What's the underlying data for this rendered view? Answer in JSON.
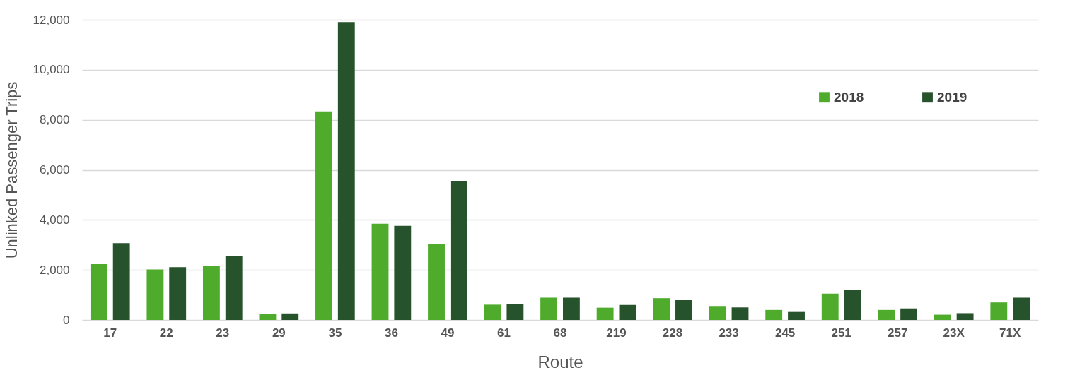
{
  "chart_data": {
    "type": "bar",
    "xlabel": "Route",
    "ylabel": "Unlinked Passenger Trips",
    "categories": [
      "17",
      "22",
      "23",
      "29",
      "35",
      "36",
      "49",
      "61",
      "68",
      "219",
      "228",
      "233",
      "245",
      "251",
      "257",
      "23X",
      "71X"
    ],
    "series": [
      {
        "name": "2018",
        "color": "#4eab2b",
        "values": [
          2230,
          2020,
          2150,
          230,
          8340,
          3850,
          3050,
          610,
          890,
          490,
          870,
          530,
          400,
          1050,
          400,
          210,
          700
        ]
      },
      {
        "name": "2019",
        "color": "#26532b",
        "values": [
          3070,
          2110,
          2550,
          260,
          11910,
          3760,
          5540,
          630,
          890,
          600,
          790,
          500,
          320,
          1190,
          460,
          270,
          890
        ]
      }
    ],
    "ylim": [
      0,
      12000
    ],
    "yticks": [
      0,
      {
        "value": 2000,
        "label": "2,000"
      },
      {
        "value": 4000,
        "label": "4,000"
      },
      {
        "value": 6000,
        "label": "6,000"
      },
      {
        "value": 8000,
        "label": "8,000"
      },
      {
        "value": 10000,
        "label": "10,000"
      },
      {
        "value": 12000,
        "label": "12,000"
      }
    ],
    "grid": "y",
    "legend": "top right"
  }
}
